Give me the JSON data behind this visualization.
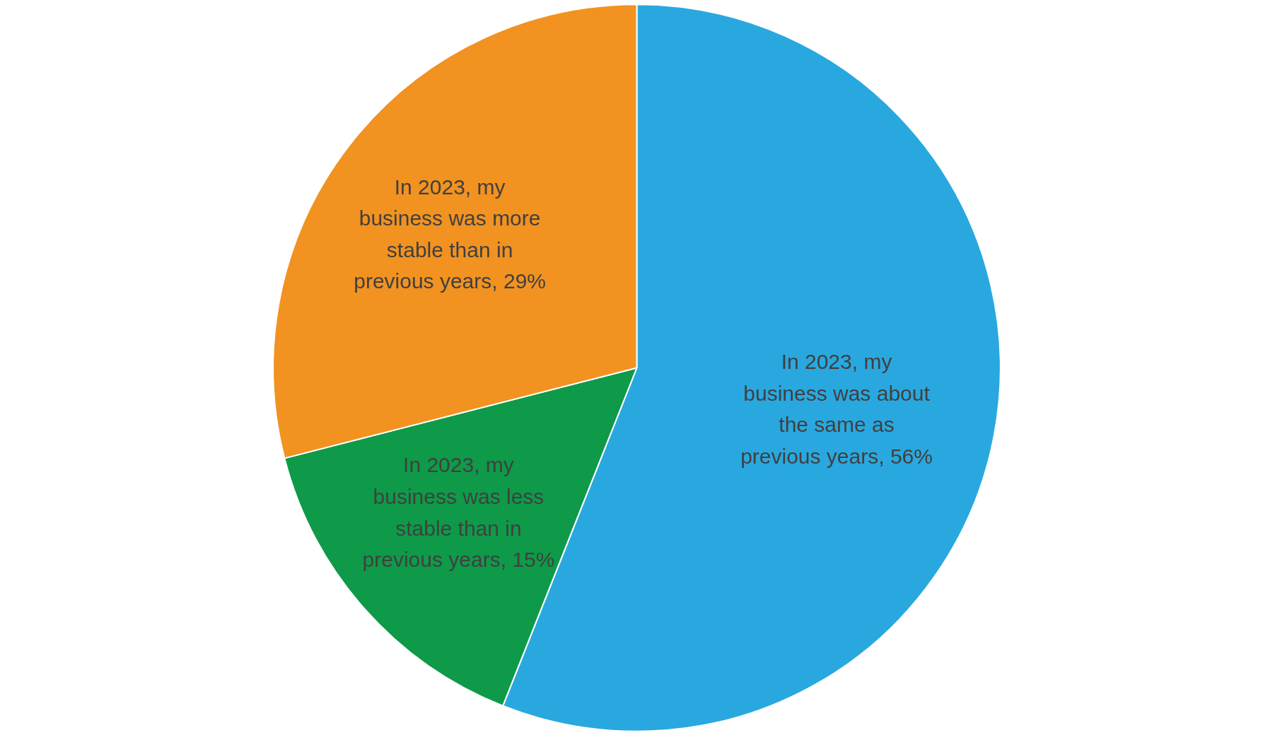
{
  "chart_data": {
    "type": "pie",
    "categories": [
      "In 2023, my business was about the same as previous years",
      "In 2023, my business was less stable than in previous years",
      "In 2023, my business was more stable than in previous years"
    ],
    "values": [
      56,
      15,
      29
    ],
    "value_labels": [
      "56%",
      "15%",
      "29%"
    ],
    "colors": [
      "#29a8e0",
      "#0e9a48",
      "#f29220"
    ]
  }
}
